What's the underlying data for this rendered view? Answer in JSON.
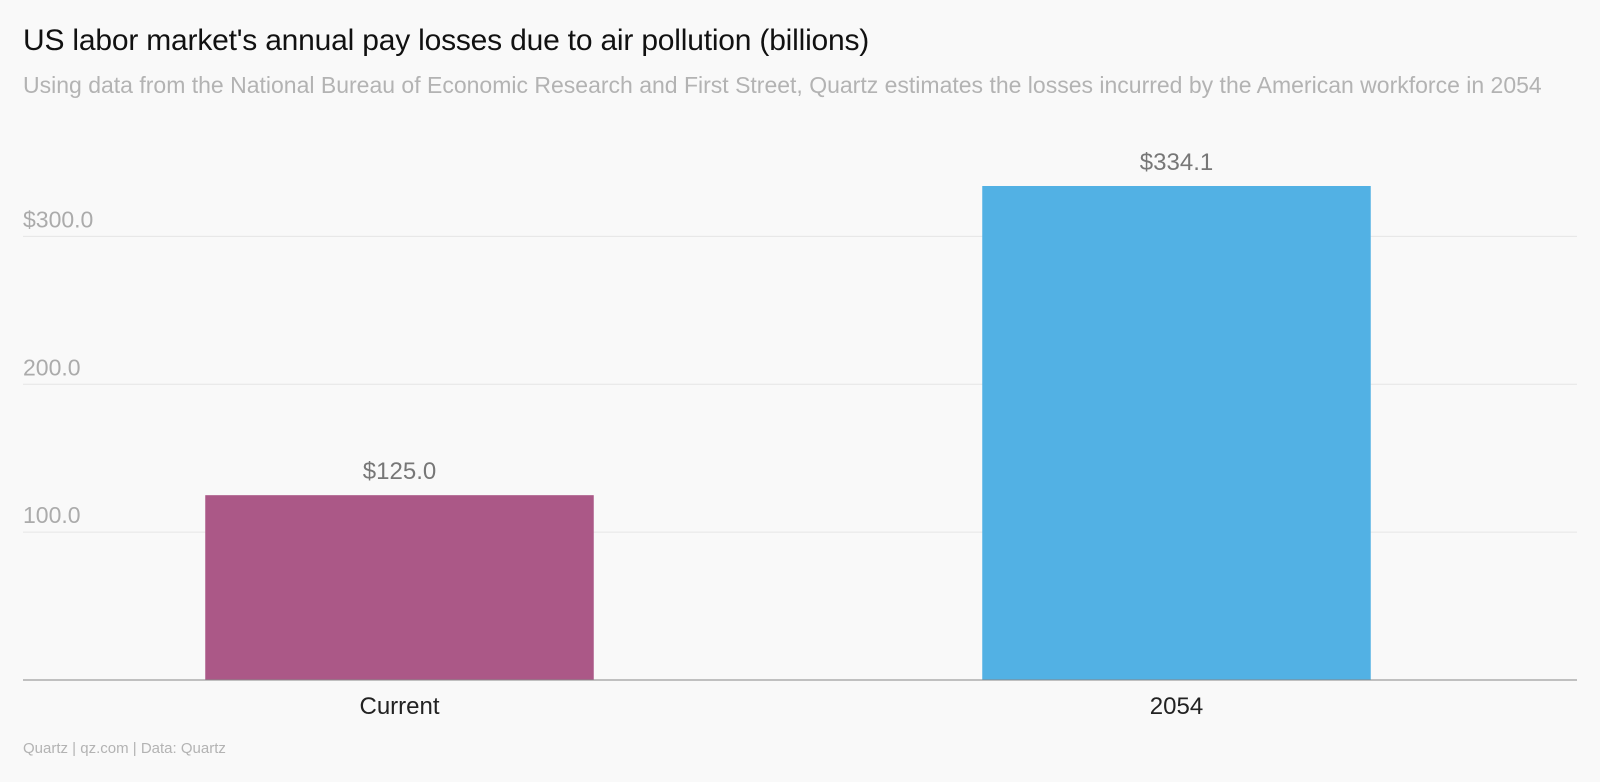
{
  "title": "US labor market's annual pay losses due to air pollution (billions)",
  "subtitle": "Using data from the National Bureau of Economic Research and First Street, Quartz estimates the losses incurred by the American workforce in 2054",
  "footer": "Quartz | qz.com | Data: Quartz",
  "chart_data": {
    "type": "bar",
    "categories": [
      "Current",
      "2054"
    ],
    "values": [
      125.0,
      334.1
    ],
    "value_labels": [
      "$125.0",
      "$334.1"
    ],
    "bar_colors": [
      "#ab5887",
      "#52b1e4"
    ],
    "yticks": [
      100,
      200,
      300
    ],
    "ytick_labels": [
      "100.0",
      "200.0",
      "$300.0"
    ],
    "ylim": [
      0,
      334.1
    ],
    "grid": true,
    "colors": {
      "grid": "#e6e6e6",
      "axis": "#888888"
    }
  }
}
